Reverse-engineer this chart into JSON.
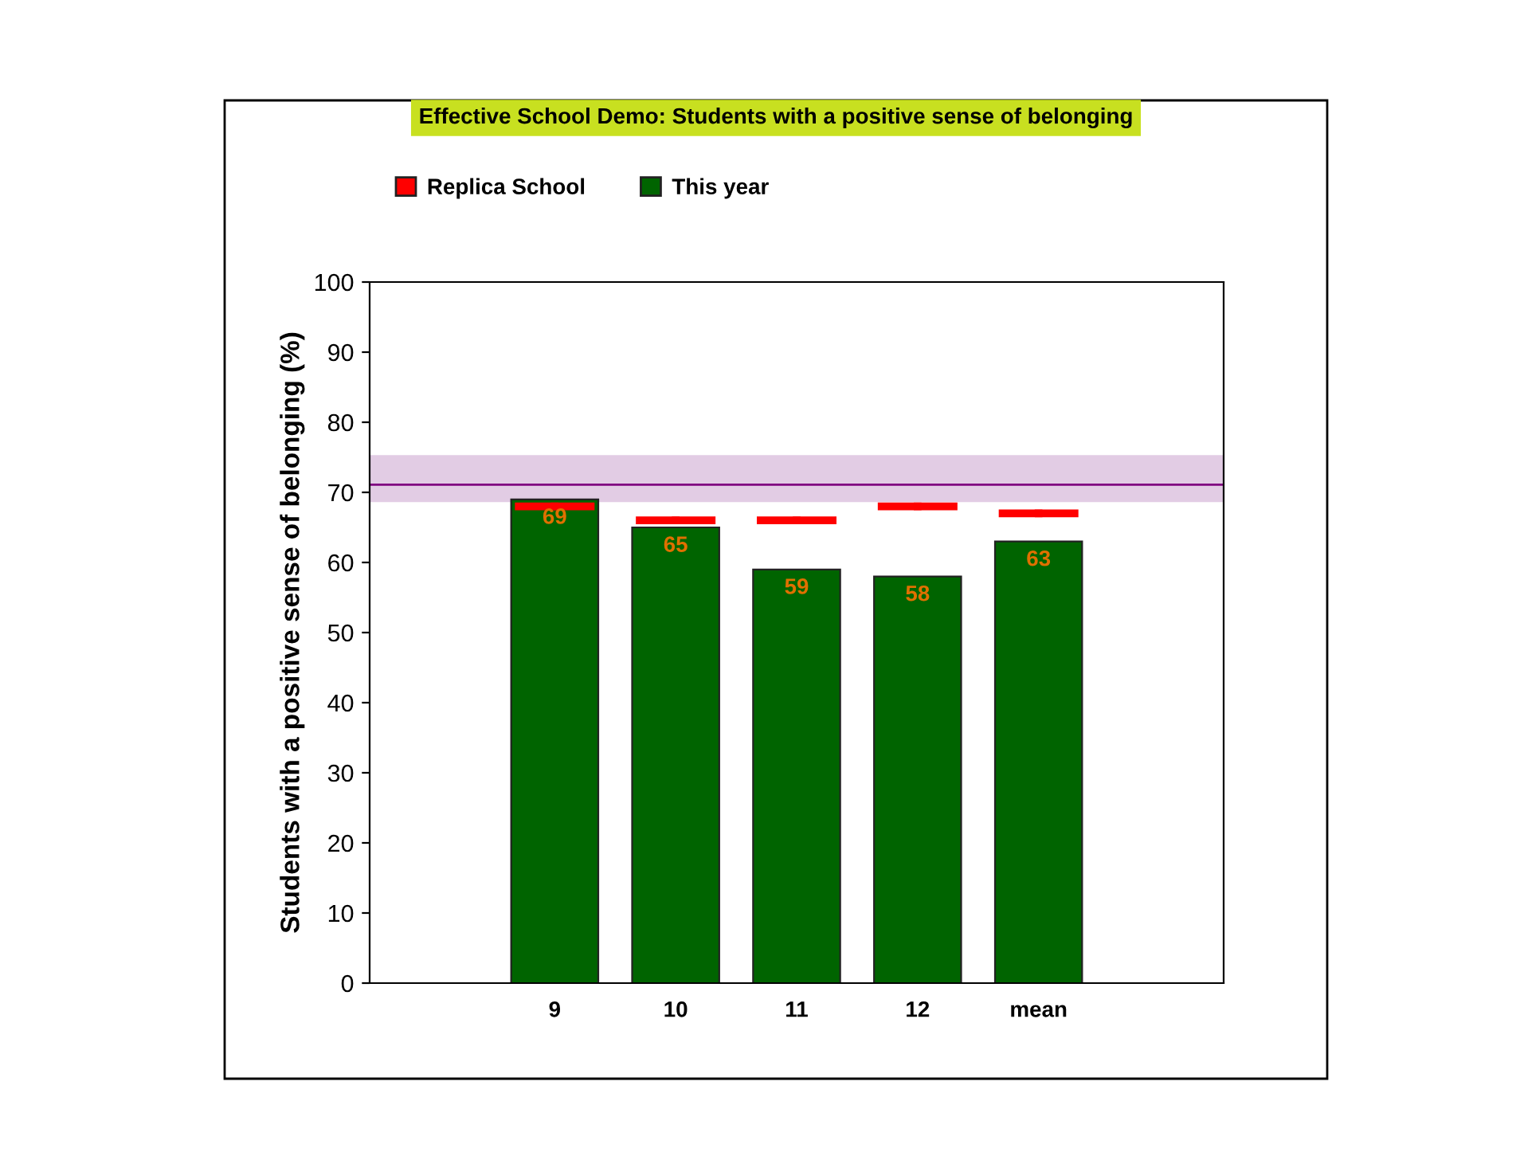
{
  "chart_data": {
    "type": "bar",
    "title": "Effective School Demo: Students with a positive sense of belonging",
    "ylabel": "Students with a positive sense of belonging (%)",
    "categories": [
      "9",
      "10",
      "11",
      "12",
      "mean"
    ],
    "series": [
      {
        "name": "Replica School",
        "type": "scatter",
        "color": "#ff0000",
        "values": [
          68,
          66,
          66,
          68,
          67
        ]
      },
      {
        "name": "This year",
        "color": "#006400",
        "values": [
          69,
          65,
          59,
          58,
          63
        ],
        "value_labels": [
          "69",
          "65",
          "59",
          "58",
          "63"
        ]
      }
    ],
    "ylim": [
      0,
      100
    ],
    "yticks": [
      0,
      10,
      20,
      30,
      40,
      50,
      60,
      70,
      80,
      90,
      100
    ],
    "ref_lines": [
      {
        "axis": "y",
        "value": 71.1,
        "color": "#800080"
      }
    ],
    "bands": [
      {
        "axis": "y",
        "from": 68.6,
        "to": 75.3,
        "color": "#e2cce4"
      }
    ],
    "legend": "top left"
  }
}
